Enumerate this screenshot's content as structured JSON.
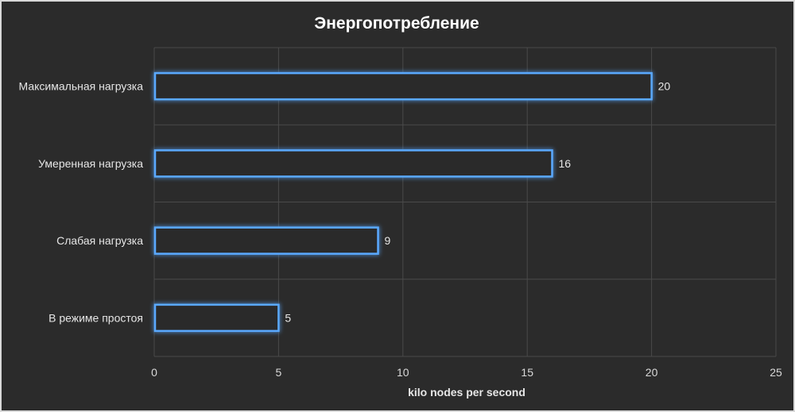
{
  "chart_data": {
    "type": "bar",
    "orientation": "horizontal",
    "title": "Энергопотребление",
    "categories": [
      "Максимальная нагрузка",
      "Умеренная нагрузка",
      "Слабая нагрузка",
      "В режиме простоя"
    ],
    "values": [
      20,
      16,
      9,
      5
    ],
    "xlabel": "kilo nodes per second",
    "ylabel": "",
    "xlim": [
      0,
      25
    ],
    "xticks": [
      "0",
      "5",
      "10",
      "15",
      "20",
      "25"
    ],
    "data_labels": [
      "20",
      "16",
      "9",
      "5"
    ],
    "grid": true,
    "legend": "none",
    "colors": {
      "background": "#2b2b2b",
      "bar_outline": "#5aa9ff",
      "bar_fill": "#2b2b2b",
      "glow": "#1f6fd6",
      "grid": "#4a4a4a"
    }
  }
}
